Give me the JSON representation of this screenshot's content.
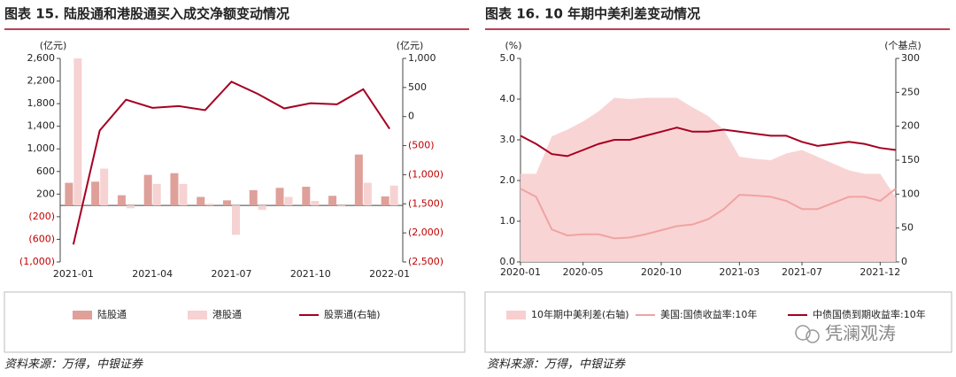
{
  "chart_data": [
    {
      "type": "combo",
      "title": "图表 15. 陆股通和港股通买入成交净额变动情况",
      "y_label": "(亿元)",
      "y2_label": "(亿元)",
      "categories": [
        "2021-01",
        null,
        null,
        "2021-04",
        null,
        null,
        "2021-07",
        null,
        null,
        "2021-10",
        null,
        null,
        "2022-01"
      ],
      "series": [
        {
          "name": "陆股通",
          "type": "bar",
          "color": "#dfa09a",
          "values": [
            400,
            420,
            180,
            540,
            570,
            150,
            90,
            270,
            310,
            330,
            170,
            900,
            160
          ]
        },
        {
          "name": "港股通",
          "type": "bar",
          "color": "#f6d2d2",
          "values": [
            2600,
            650,
            -50,
            380,
            380,
            30,
            -520,
            -80,
            150,
            80,
            -20,
            400,
            350
          ]
        },
        {
          "name": "股票通(右轴)",
          "type": "line",
          "axis": "y2",
          "color": "#a50021",
          "values": [
            -2200,
            -240,
            290,
            150,
            180,
            110,
            600,
            390,
            140,
            230,
            210,
            470,
            -210
          ]
        }
      ],
      "ylim": [
        -1000,
        2600
      ],
      "yticks": [
        {
          "value": 2600,
          "label": "2,600"
        },
        {
          "value": 2200,
          "label": "2,200"
        },
        {
          "value": 1800,
          "label": "1,800"
        },
        {
          "value": 1400,
          "label": "1,400"
        },
        {
          "value": 1000,
          "label": "1,000"
        },
        600,
        200,
        {
          "value": -200,
          "label": "(200)"
        },
        {
          "value": -600,
          "label": "(600)"
        },
        {
          "value": -1000,
          "label": "(1,000)"
        }
      ],
      "y2lim": [
        -2500,
        1000
      ],
      "y2ticks": [
        {
          "value": 1000,
          "label": "1,000"
        },
        500,
        0,
        {
          "value": -500,
          "label": "(500)"
        },
        {
          "value": -1000,
          "label": "(1,000)"
        },
        {
          "value": -1500,
          "label": "(1,500)"
        },
        {
          "value": -2000,
          "label": "(2,000)"
        },
        {
          "value": -2500,
          "label": "(2,500)"
        }
      ],
      "negative_tick_color": "#c00000",
      "grid": false,
      "legend": "bottom"
    },
    {
      "type": "area",
      "title": "图表 16. 10 年期中美利差变动情况",
      "y_label": "(%)",
      "y2_label": "(个基点)",
      "x": [
        "2020-01",
        "2020-02",
        "2020-03",
        "2020-04",
        "2020-05",
        "2020-06",
        "2020-07",
        "2020-08",
        "2020-09",
        "2020-10",
        "2020-11",
        "2020-12",
        "2021-01",
        "2021-02",
        "2021-03",
        "2021-04",
        "2021-05",
        "2021-06",
        "2021-07",
        "2021-08",
        "2021-09",
        "2021-10",
        "2021-11",
        "2021-12",
        "2022-01"
      ],
      "xticks": [
        "2020-01",
        "2020-05",
        "2020-10",
        "2021-03",
        "2021-07",
        "2021-12"
      ],
      "series": [
        {
          "name": "10年期中美利差(右轴)",
          "type": "area",
          "axis": "y2",
          "color": "#f8cfcf",
          "values": [
            130,
            130,
            185,
            195,
            207,
            222,
            242,
            240,
            242,
            242,
            242,
            228,
            215,
            195,
            155,
            152,
            150,
            160,
            165,
            155,
            145,
            135,
            130,
            130,
            95
          ]
        },
        {
          "name": "美国:国债收益率:10年",
          "type": "line",
          "color": "#f0a3a3",
          "values": [
            1.8,
            1.6,
            0.8,
            0.65,
            0.68,
            0.68,
            0.58,
            0.6,
            0.68,
            0.78,
            0.88,
            0.92,
            1.05,
            1.3,
            1.65,
            1.63,
            1.6,
            1.5,
            1.3,
            1.3,
            1.45,
            1.6,
            1.6,
            1.5,
            1.8
          ]
        },
        {
          "name": "中债国债到期收益率:10年",
          "type": "line",
          "color": "#a50021",
          "values": [
            3.1,
            2.9,
            2.65,
            2.6,
            2.75,
            2.9,
            3.0,
            3.0,
            3.1,
            3.2,
            3.3,
            3.2,
            3.2,
            3.25,
            3.2,
            3.15,
            3.1,
            3.1,
            2.95,
            2.85,
            2.9,
            2.95,
            2.9,
            2.8,
            2.75
          ]
        }
      ],
      "ylim": [
        0,
        5
      ],
      "yticks": [
        {
          "value": 0,
          "label": "0.0"
        },
        {
          "value": 1,
          "label": "1.0"
        },
        {
          "value": 2,
          "label": "2.0"
        },
        {
          "value": 3,
          "label": "3.0"
        },
        {
          "value": 4,
          "label": "4.0"
        },
        {
          "value": 5,
          "label": "5.0"
        }
      ],
      "y2lim": [
        0,
        300
      ],
      "y2ticks": [
        0,
        50,
        100,
        150,
        200,
        250,
        300
      ],
      "grid": false,
      "legend": "bottom"
    }
  ],
  "sources": [
    "资料来源：万得，中银证券",
    "资料来源：万得，中银证券"
  ],
  "watermark": "凭澜观涛"
}
